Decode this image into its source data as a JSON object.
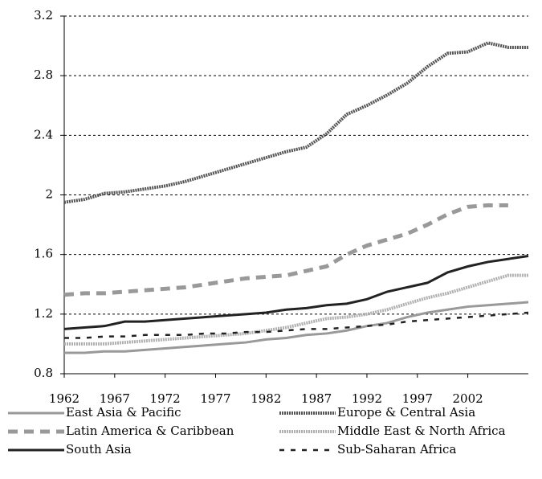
{
  "chart_data": {
    "type": "line",
    "x": [
      1962,
      1964,
      1966,
      1968,
      1970,
      1972,
      1974,
      1976,
      1978,
      1980,
      1982,
      1984,
      1986,
      1988,
      1990,
      1992,
      1994,
      1996,
      1998,
      2000,
      2002,
      2004,
      2006,
      2008
    ],
    "xlim": [
      1962,
      2008
    ],
    "xticks": [
      1962,
      1967,
      1972,
      1977,
      1982,
      1987,
      1992,
      1997,
      2002
    ],
    "ylim": [
      0.8,
      3.2
    ],
    "yticks": [
      0.8,
      1.2,
      1.6,
      2,
      2.4,
      2.8,
      3.2
    ],
    "grid": true,
    "legend": "bottom",
    "series": [
      {
        "name": "East Asia & Pacific",
        "color": "#999999",
        "style": "solid",
        "values": [
          0.94,
          0.94,
          0.95,
          0.95,
          0.96,
          0.97,
          0.98,
          0.99,
          1.0,
          1.01,
          1.03,
          1.04,
          1.06,
          1.07,
          1.09,
          1.12,
          1.14,
          1.18,
          1.21,
          1.23,
          1.25,
          1.26,
          1.27,
          1.28
        ]
      },
      {
        "name": "Europe & Central Asia",
        "color": "#555555",
        "style": "dotted",
        "values": [
          1.95,
          1.97,
          2.01,
          2.02,
          2.04,
          2.06,
          2.09,
          2.13,
          2.17,
          2.21,
          2.25,
          2.29,
          2.32,
          2.41,
          2.54,
          2.6,
          2.67,
          2.75,
          2.86,
          2.95,
          2.96,
          3.02,
          2.99,
          2.99
        ]
      },
      {
        "name": "Latin America & Caribbean",
        "color": "#999999",
        "style": "dashed",
        "values": [
          1.33,
          1.34,
          1.34,
          1.35,
          1.36,
          1.37,
          1.38,
          1.4,
          1.42,
          1.44,
          1.45,
          1.46,
          1.49,
          1.52,
          1.6,
          1.66,
          1.7,
          1.74,
          1.8,
          1.87,
          1.92,
          1.93,
          1.93,
          null
        ]
      },
      {
        "name": "Middle East & North Africa",
        "color": "#b0b0b0",
        "style": "dotted",
        "values": [
          1.0,
          1.0,
          1.0,
          1.01,
          1.02,
          1.03,
          1.04,
          1.05,
          1.06,
          1.07,
          1.09,
          1.11,
          1.14,
          1.17,
          1.18,
          1.2,
          1.23,
          1.27,
          1.31,
          1.34,
          1.38,
          1.42,
          1.46,
          1.46
        ]
      },
      {
        "name": "South Asia",
        "color": "#222222",
        "style": "solid",
        "values": [
          1.1,
          1.11,
          1.12,
          1.15,
          1.15,
          1.16,
          1.17,
          1.18,
          1.19,
          1.2,
          1.21,
          1.23,
          1.24,
          1.26,
          1.27,
          1.3,
          1.35,
          1.38,
          1.41,
          1.48,
          1.52,
          1.55,
          1.57,
          1.59
        ]
      },
      {
        "name": "Sub-Saharan Africa",
        "color": "#222222",
        "style": "shortdash",
        "values": [
          1.04,
          1.04,
          1.05,
          1.05,
          1.06,
          1.06,
          1.06,
          1.07,
          1.07,
          1.08,
          1.08,
          1.09,
          1.1,
          1.1,
          1.11,
          1.12,
          1.13,
          1.15,
          1.16,
          1.17,
          1.18,
          1.19,
          1.2,
          1.21
        ]
      }
    ]
  }
}
